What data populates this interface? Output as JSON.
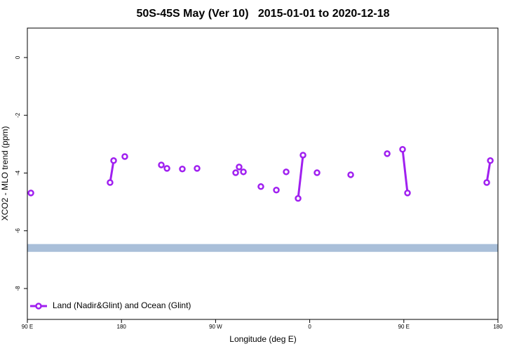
{
  "chart_data": {
    "type": "line",
    "title": "50S-45S May (Ver 10)   2015-01-01 to 2020-12-18",
    "x_label": "Longitude (deg E)",
    "y_label": "XCO2 - MLO trend (ppm)",
    "xlim": [
      90,
      540
    ],
    "xticks": [
      {
        "value": 90,
        "label": "90 E"
      },
      {
        "value": 180,
        "label": "180"
      },
      {
        "value": 270,
        "label": "90 W"
      },
      {
        "value": 360,
        "label": "0"
      },
      {
        "value": 450,
        "label": "90 E"
      },
      {
        "value": 540,
        "label": "180"
      }
    ],
    "ylim": [
      -9.07,
      1.02
    ],
    "yticks": [
      0,
      -2,
      -4,
      -6,
      -8
    ],
    "band": {
      "range": [
        -6.73,
        -6.46
      ],
      "color": "#a9bfd9"
    },
    "legend": "bottom-left",
    "series": [
      {
        "name": "Land (Nadir&Glint) and Ocean (Glint)",
        "color": "#a020f0",
        "x": [
          93.4,
          null,
          169.1,
          172.5,
          null,
          183.2,
          null,
          218.1,
          null,
          223.5,
          null,
          238.2,
          null,
          252.3,
          null,
          289.2,
          null,
          292.5,
          null,
          296.6,
          null,
          313.3,
          null,
          328.1,
          null,
          337.5,
          null,
          348.9,
          353.6,
          null,
          367,
          null,
          399.2,
          null,
          434.1,
          null,
          448.8,
          453.5,
          null,
          529.3,
          532.7
        ],
        "values": [
          -4.69,
          null,
          -4.33,
          -3.57,
          null,
          -3.43,
          null,
          -3.72,
          null,
          -3.84,
          null,
          -3.86,
          null,
          -3.84,
          null,
          -3.99,
          null,
          -3.79,
          null,
          -3.96,
          null,
          -4.47,
          null,
          -4.59,
          null,
          -3.96,
          null,
          -4.88,
          -3.38,
          null,
          -3.99,
          null,
          -4.06,
          null,
          -3.33,
          null,
          -3.18,
          -4.69,
          null,
          -4.33,
          -3.57
        ]
      }
    ]
  }
}
